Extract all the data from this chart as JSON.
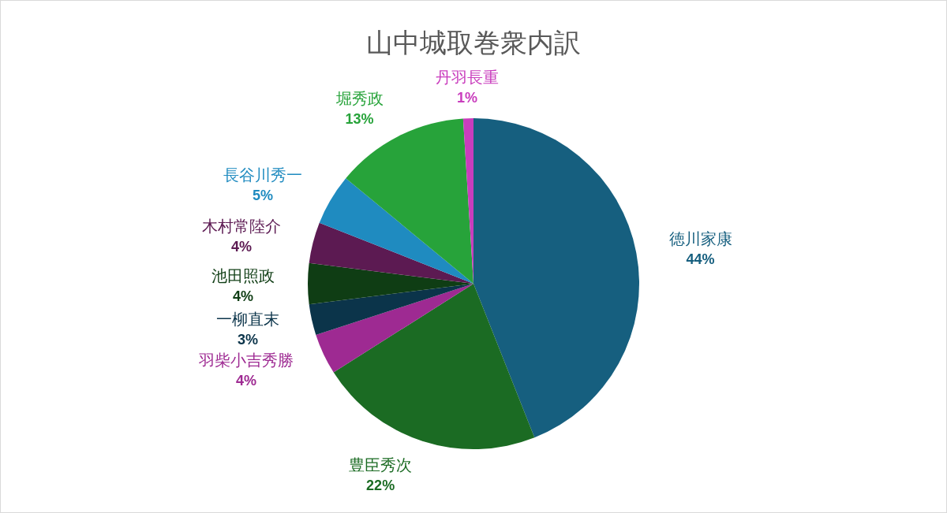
{
  "chart_data": {
    "type": "pie",
    "title": "山中城取巻衆内訳",
    "categories": [
      "徳川家康",
      "豊臣秀次",
      "羽柴小吉秀勝",
      "一柳直末",
      "池田照政",
      "木村常陸介",
      "長谷川秀一",
      "堀秀政",
      "丹羽長重"
    ],
    "values": [
      44,
      22,
      4,
      3,
      4,
      4,
      5,
      13,
      1
    ],
    "colors": [
      "#165f7f",
      "#1b6b23",
      "#9e2a92",
      "#0b344a",
      "#0f3d14",
      "#5c1a52",
      "#1f8bc0",
      "#27a33a",
      "#c93dbd"
    ],
    "value_labels": [
      "44%",
      "22%",
      "4%",
      "3%",
      "4%",
      "4%",
      "5%",
      "13%",
      "1%"
    ]
  }
}
